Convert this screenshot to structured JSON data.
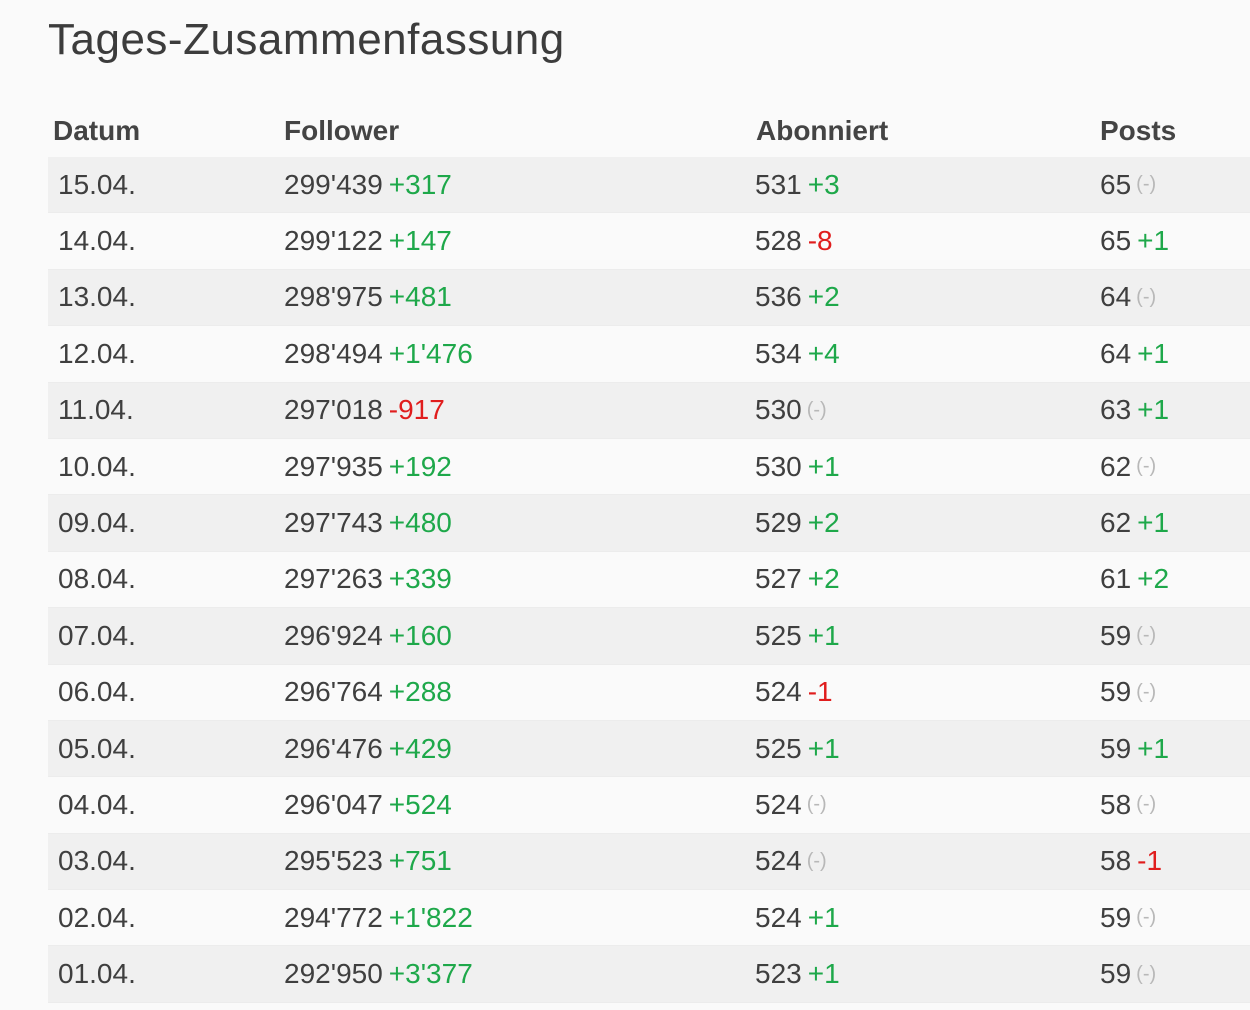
{
  "title": "Tages-Zusammenfassung",
  "columns": {
    "date": "Datum",
    "followers": "Follower",
    "subscribed": "Abonniert",
    "posts": "Posts"
  },
  "colors": {
    "positive": "#1ea84a",
    "negative": "#e01d1d",
    "neutral": "#b8b8b8"
  },
  "rows": [
    {
      "date": "15.04.",
      "followers": "299'439",
      "followers_delta": "+317",
      "subscribed": "531",
      "subscribed_delta": "+3",
      "posts": "65",
      "posts_delta": "(-)"
    },
    {
      "date": "14.04.",
      "followers": "299'122",
      "followers_delta": "+147",
      "subscribed": "528",
      "subscribed_delta": "-8",
      "posts": "65",
      "posts_delta": "+1"
    },
    {
      "date": "13.04.",
      "followers": "298'975",
      "followers_delta": "+481",
      "subscribed": "536",
      "subscribed_delta": "+2",
      "posts": "64",
      "posts_delta": "(-)"
    },
    {
      "date": "12.04.",
      "followers": "298'494",
      "followers_delta": "+1'476",
      "subscribed": "534",
      "subscribed_delta": "+4",
      "posts": "64",
      "posts_delta": "+1"
    },
    {
      "date": "11.04.",
      "followers": "297'018",
      "followers_delta": "-917",
      "subscribed": "530",
      "subscribed_delta": "(-)",
      "posts": "63",
      "posts_delta": "+1"
    },
    {
      "date": "10.04.",
      "followers": "297'935",
      "followers_delta": "+192",
      "subscribed": "530",
      "subscribed_delta": "+1",
      "posts": "62",
      "posts_delta": "(-)"
    },
    {
      "date": "09.04.",
      "followers": "297'743",
      "followers_delta": "+480",
      "subscribed": "529",
      "subscribed_delta": "+2",
      "posts": "62",
      "posts_delta": "+1"
    },
    {
      "date": "08.04.",
      "followers": "297'263",
      "followers_delta": "+339",
      "subscribed": "527",
      "subscribed_delta": "+2",
      "posts": "61",
      "posts_delta": "+2"
    },
    {
      "date": "07.04.",
      "followers": "296'924",
      "followers_delta": "+160",
      "subscribed": "525",
      "subscribed_delta": "+1",
      "posts": "59",
      "posts_delta": "(-)"
    },
    {
      "date": "06.04.",
      "followers": "296'764",
      "followers_delta": "+288",
      "subscribed": "524",
      "subscribed_delta": "-1",
      "posts": "59",
      "posts_delta": "(-)"
    },
    {
      "date": "05.04.",
      "followers": "296'476",
      "followers_delta": "+429",
      "subscribed": "525",
      "subscribed_delta": "+1",
      "posts": "59",
      "posts_delta": "+1"
    },
    {
      "date": "04.04.",
      "followers": "296'047",
      "followers_delta": "+524",
      "subscribed": "524",
      "subscribed_delta": "(-)",
      "posts": "58",
      "posts_delta": "(-)"
    },
    {
      "date": "03.04.",
      "followers": "295'523",
      "followers_delta": "+751",
      "subscribed": "524",
      "subscribed_delta": "(-)",
      "posts": "58",
      "posts_delta": "-1"
    },
    {
      "date": "02.04.",
      "followers": "294'772",
      "followers_delta": "+1'822",
      "subscribed": "524",
      "subscribed_delta": "+1",
      "posts": "59",
      "posts_delta": "(-)"
    },
    {
      "date": "01.04.",
      "followers": "292'950",
      "followers_delta": "+3'377",
      "subscribed": "523",
      "subscribed_delta": "+1",
      "posts": "59",
      "posts_delta": "(-)"
    }
  ]
}
